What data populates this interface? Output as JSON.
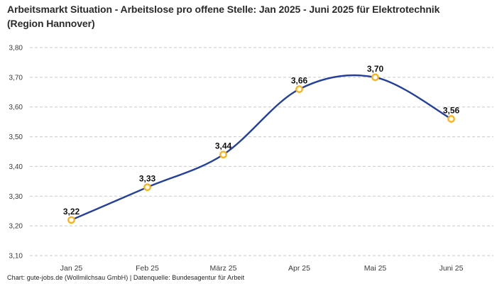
{
  "title": "Arbeitsmarkt Situation - Arbeitslose pro offene Stelle: Jan 2025 - Juni 2025 für Elektrotechnik (Region Hannover)",
  "footer": "Chart: gute-jobs.de (Wollmilchsau GmbH) | Datenquelle: Bundesagentur für Arbeit",
  "chart_data": {
    "type": "line",
    "title": "Arbeitsmarkt Situation - Arbeitslose pro offene Stelle: Jan 2025 - Juni 2025 für Elektrotechnik (Region Hannover)",
    "categories": [
      "Jan 25",
      "Feb 25",
      "März 25",
      "Apr 25",
      "Mai 25",
      "Juni 25"
    ],
    "values": [
      3.22,
      3.33,
      3.44,
      3.66,
      3.7,
      3.56
    ],
    "value_labels": [
      "3,22",
      "3,33",
      "3,44",
      "3,66",
      "3,70",
      "3,56"
    ],
    "xlabel": "",
    "ylabel": "",
    "ylim": [
      3.1,
      3.8
    ],
    "y_ticks": [
      3.8,
      3.7,
      3.6,
      3.5,
      3.4,
      3.3,
      3.2,
      3.1
    ],
    "y_tick_labels": [
      "3,80",
      "3,70",
      "3,60",
      "3,50",
      "3,40",
      "3,30",
      "3,20",
      "3,10"
    ],
    "grid": "horizontal-dashed",
    "legend": "none",
    "smooth": true,
    "line_color": "#24409C",
    "marker_color": "#FBB117",
    "marker_fill": "#FFFFFF",
    "grid_color": "#C9C9C9",
    "tick_text_color": "#3B3B3B",
    "data_label_color": "#111111"
  }
}
